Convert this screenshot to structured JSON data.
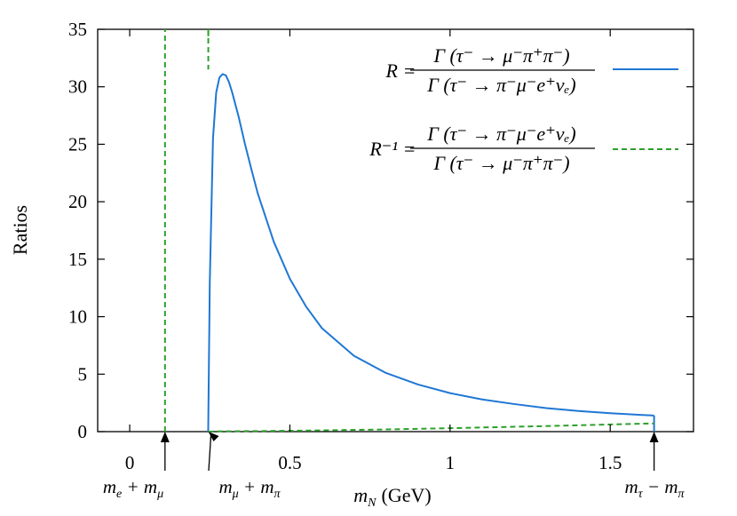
{
  "chart_data": {
    "type": "line",
    "title": "",
    "xlabel": "m_N (GeV)",
    "ylabel": "Ratios",
    "xlim": [
      -0.1,
      1.76
    ],
    "ylim": [
      0,
      35
    ],
    "xticks": [
      0,
      0.5,
      1,
      1.5
    ],
    "xtick_labels": [
      "0",
      "0.5",
      "1",
      "1.5"
    ],
    "yticks": [
      0,
      5,
      10,
      15,
      20,
      25,
      30,
      35
    ],
    "ytick_labels": [
      "0",
      "5",
      "10",
      "15",
      "20",
      "25",
      "30",
      "35"
    ],
    "grid": false,
    "legend_position": "top-right",
    "series": [
      {
        "name": "R = Γ(τ⁻ → μ⁻π⁺π⁻) / Γ(τ⁻ → π⁻μ⁻e⁺ν_e)",
        "color": "#1f77d4",
        "style": "solid",
        "x": [
          0.245,
          0.25,
          0.26,
          0.27,
          0.28,
          0.29,
          0.3,
          0.31,
          0.32,
          0.34,
          0.36,
          0.38,
          0.4,
          0.45,
          0.5,
          0.55,
          0.6,
          0.7,
          0.8,
          0.9,
          1.0,
          1.1,
          1.2,
          1.3,
          1.4,
          1.5,
          1.6,
          1.637
        ],
        "y": [
          0,
          13,
          25.5,
          29.5,
          30.8,
          31.1,
          31.0,
          30.4,
          29.5,
          27.4,
          25.0,
          22.8,
          20.7,
          16.5,
          13.3,
          10.9,
          9.0,
          6.6,
          5.1,
          4.1,
          3.35,
          2.8,
          2.4,
          2.05,
          1.8,
          1.6,
          1.45,
          1.4
        ]
      },
      {
        "name": "R⁻¹ = Γ(τ⁻ → π⁻μ⁻e⁺ν_e) / Γ(τ⁻ → μ⁻π⁺π⁻)",
        "color": "#2ca02c",
        "style": "dashed",
        "x": [
          0.245,
          0.3,
          0.4,
          0.5,
          0.6,
          0.8,
          1.0,
          1.2,
          1.4,
          1.6,
          1.637
        ],
        "y": [
          0,
          0.03,
          0.05,
          0.075,
          0.11,
          0.19,
          0.3,
          0.42,
          0.55,
          0.69,
          0.71
        ]
      }
    ],
    "vertical_lines": [
      {
        "x": 0.1102,
        "color": "#2ca02c",
        "style": "dashed"
      },
      {
        "x": 0.2453,
        "color": "#2ca02c",
        "style": "dashed",
        "from_y": 34.4,
        "to_y": 35
      }
    ],
    "annotations": [
      {
        "label_parts": [
          "m",
          "e",
          " + m",
          "μ"
        ],
        "x": 0.1102
      },
      {
        "label_parts": [
          "m",
          "μ",
          " + m",
          "π"
        ],
        "x": 0.2453
      },
      {
        "label_parts": [
          "m",
          "τ",
          " − m",
          "π"
        ],
        "x": 1.637
      }
    ]
  },
  "legend": {
    "r": {
      "lhs": "R",
      "numerator": "Γ (τ⁻ → μ⁻π⁺π⁻)",
      "denominator": "Γ (τ⁻ → π⁻μ⁻e⁺νₑ)"
    },
    "rinv": {
      "lhs": "R⁻¹",
      "numerator": "Γ (τ⁻ → π⁻μ⁻e⁺νₑ)",
      "denominator": "Γ (τ⁻ → μ⁻π⁺π⁻)"
    }
  },
  "xlabel_parts": {
    "var": "m",
    "sub": "N",
    "unit": "(GeV)"
  }
}
